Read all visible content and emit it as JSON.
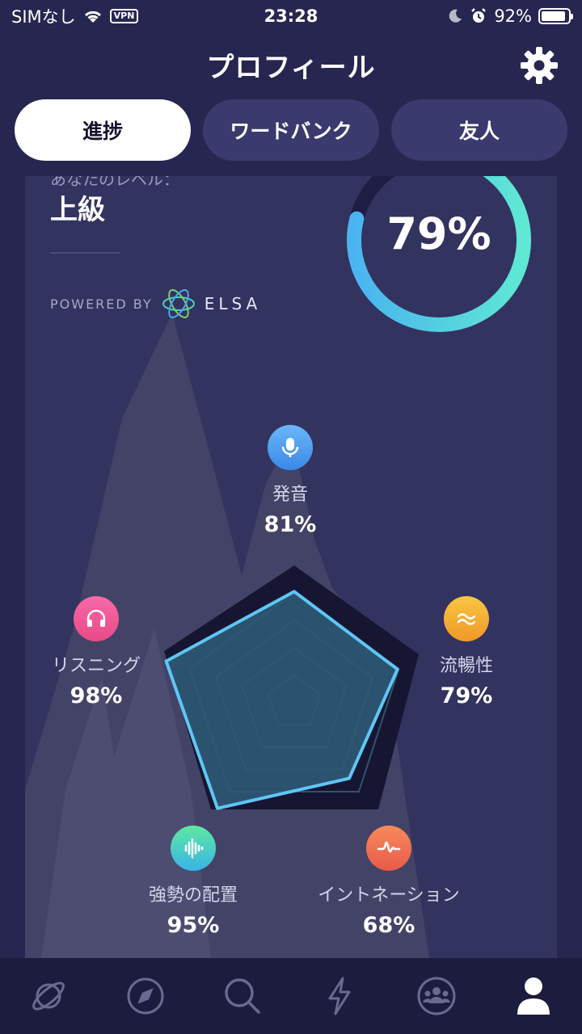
{
  "status_bar": {
    "carrier": "SIMなし",
    "vpn": "VPN",
    "time": "23:28",
    "battery": "92%",
    "battery_fraction": 0.92
  },
  "header": {
    "title": "プロフィール",
    "settings_icon": "gear-icon"
  },
  "tabs": [
    {
      "label": "進捗",
      "active": true
    },
    {
      "label": "ワードバンク",
      "active": false
    },
    {
      "label": "友人",
      "active": false
    }
  ],
  "level": {
    "caption": "あなたのレベル：",
    "value": "上級",
    "overall_percent": "79%",
    "overall_fraction": 0.79
  },
  "powered_by": {
    "label": "POWERED BY",
    "brand": "ELSA"
  },
  "skills": [
    {
      "key": "pronunciation",
      "name": "発音",
      "percent": "81%",
      "value": 81,
      "icon": "microphone-icon"
    },
    {
      "key": "fluency",
      "name": "流暢性",
      "percent": "79%",
      "value": 79,
      "icon": "wave-icon"
    },
    {
      "key": "intonation",
      "name": "イントネーション",
      "percent": "68%",
      "value": 68,
      "icon": "intonation-icon"
    },
    {
      "key": "stress",
      "name": "強勢の配置",
      "percent": "95%",
      "value": 95,
      "icon": "soundwave-icon"
    },
    {
      "key": "listening",
      "name": "リスニング",
      "percent": "98%",
      "value": 98,
      "icon": "headphones-icon"
    }
  ],
  "colors": {
    "background": "#262650",
    "card": "#33335f",
    "ring_start": "#4ab4f0",
    "ring_end": "#5ee8d4",
    "radar_stroke": "#5ec6f4"
  },
  "bottom_nav": [
    {
      "icon": "planet-icon",
      "active": false
    },
    {
      "icon": "compass-icon",
      "active": false
    },
    {
      "icon": "search-icon",
      "active": false
    },
    {
      "icon": "lightning-icon",
      "active": false
    },
    {
      "icon": "community-icon",
      "active": false
    },
    {
      "icon": "profile-icon",
      "active": true
    }
  ]
}
